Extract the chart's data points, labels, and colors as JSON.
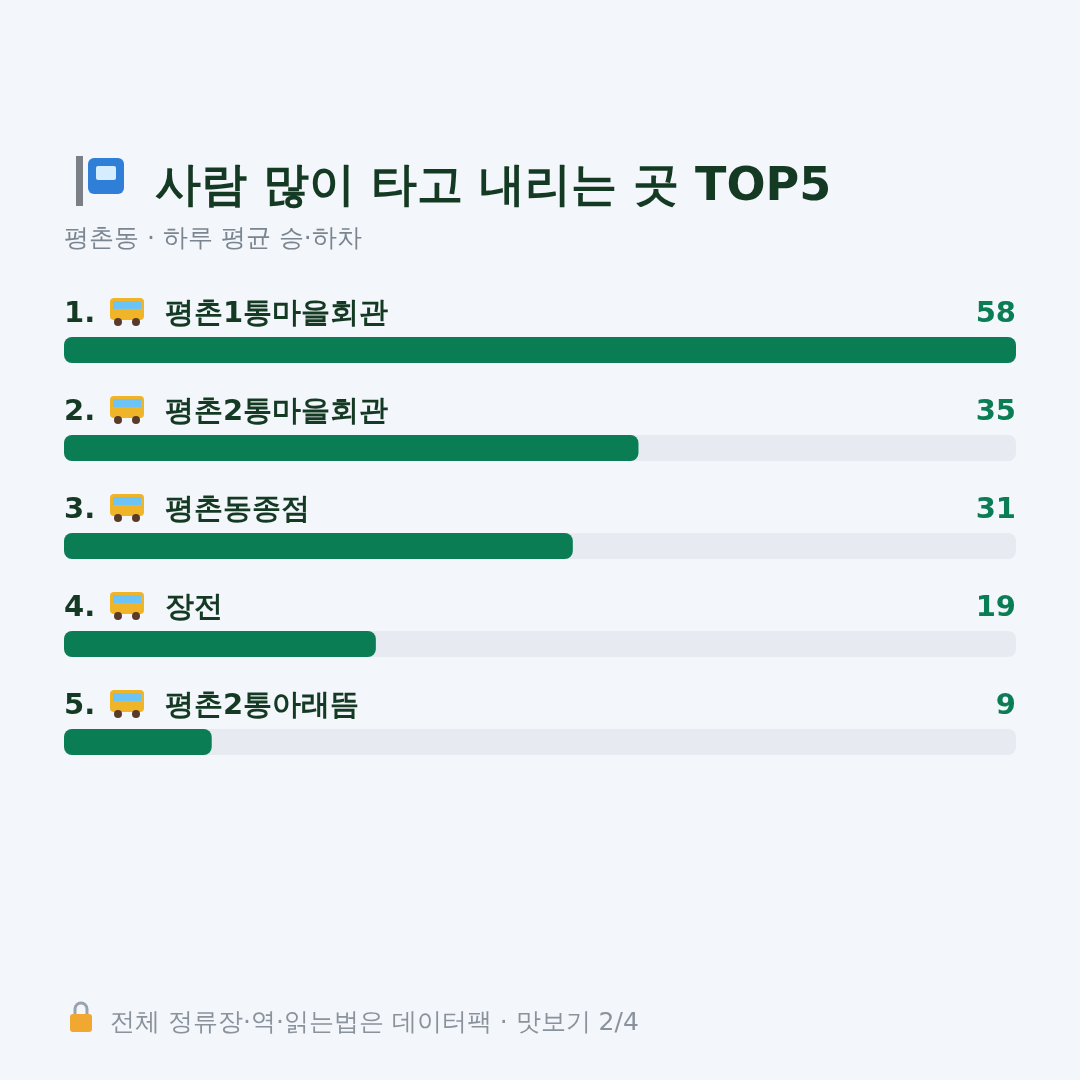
{
  "chart_data": {
    "type": "bar",
    "orientation": "horizontal",
    "title": "사람 많이 타고 내리는 곳 TOP5",
    "subtitle": "평촌동 · 하루 평균 승·하차",
    "categories": [
      "1. 평촌1통마을회관",
      "2. 평촌2통마을회관",
      "3. 평촌동종점",
      "4. 장전",
      "5. 평촌2통아래뜸"
    ],
    "values": [
      58,
      35,
      31,
      19,
      9
    ],
    "color": "#0b7d55",
    "data_labels": true,
    "annotations": [
      "전체 정류장·역·읽는법은 데이터팩 · 맛보기 2/4"
    ]
  }
}
